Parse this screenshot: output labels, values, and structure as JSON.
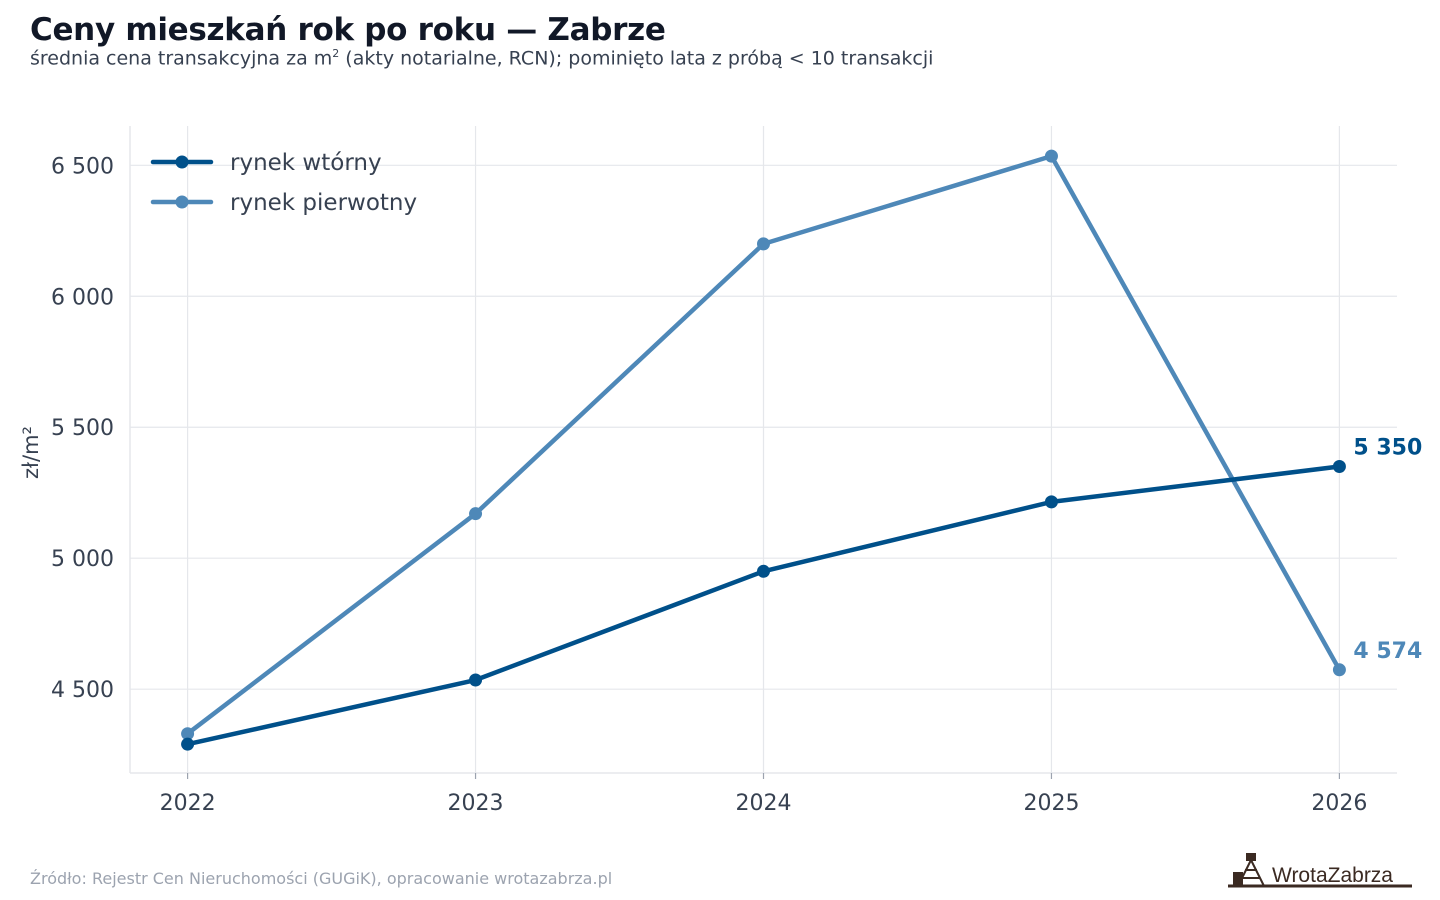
{
  "chart": {
    "title": "Ceny mieszkań rok po roku — Zabrze",
    "subtitle_before": "średnia cena transakcyjna za m",
    "subtitle_sup": "2",
    "subtitle_after": " (akty notarialne, RCN); pominięto lata z próbą < 10 transakcji",
    "source": "Źródło: Rejestr Cen Nieruchomości (GUGiK), opracowanie wrotazabrza.pl",
    "logo_text": "WrotaZabrza"
  },
  "chart_data": {
    "type": "line",
    "x": [
      2022,
      2023,
      2024,
      2025,
      2026
    ],
    "series": [
      {
        "name": "rynek wtórny",
        "color": "#00508a",
        "values": [
          4290,
          4535,
          4950,
          5215,
          5350
        ],
        "end_label": "5 350"
      },
      {
        "name": "rynek pierwotny",
        "color": "#4e88b8",
        "values": [
          4330,
          5170,
          6200,
          6535,
          4574
        ],
        "end_label": "4 574"
      }
    ],
    "xlabel": "",
    "ylabel": "zł/m²",
    "ylim": [
      4180,
      6650
    ],
    "xlim": [
      2021.8,
      2026.2
    ],
    "yticks": [
      4500,
      5000,
      5500,
      6000,
      6500
    ],
    "ytick_labels": [
      "4 500",
      "5 000",
      "5 500",
      "6 000",
      "6 500"
    ],
    "xtick_labels": [
      "2022",
      "2023",
      "2024",
      "2025",
      "2026"
    ],
    "grid": true,
    "legend": "top-left"
  }
}
